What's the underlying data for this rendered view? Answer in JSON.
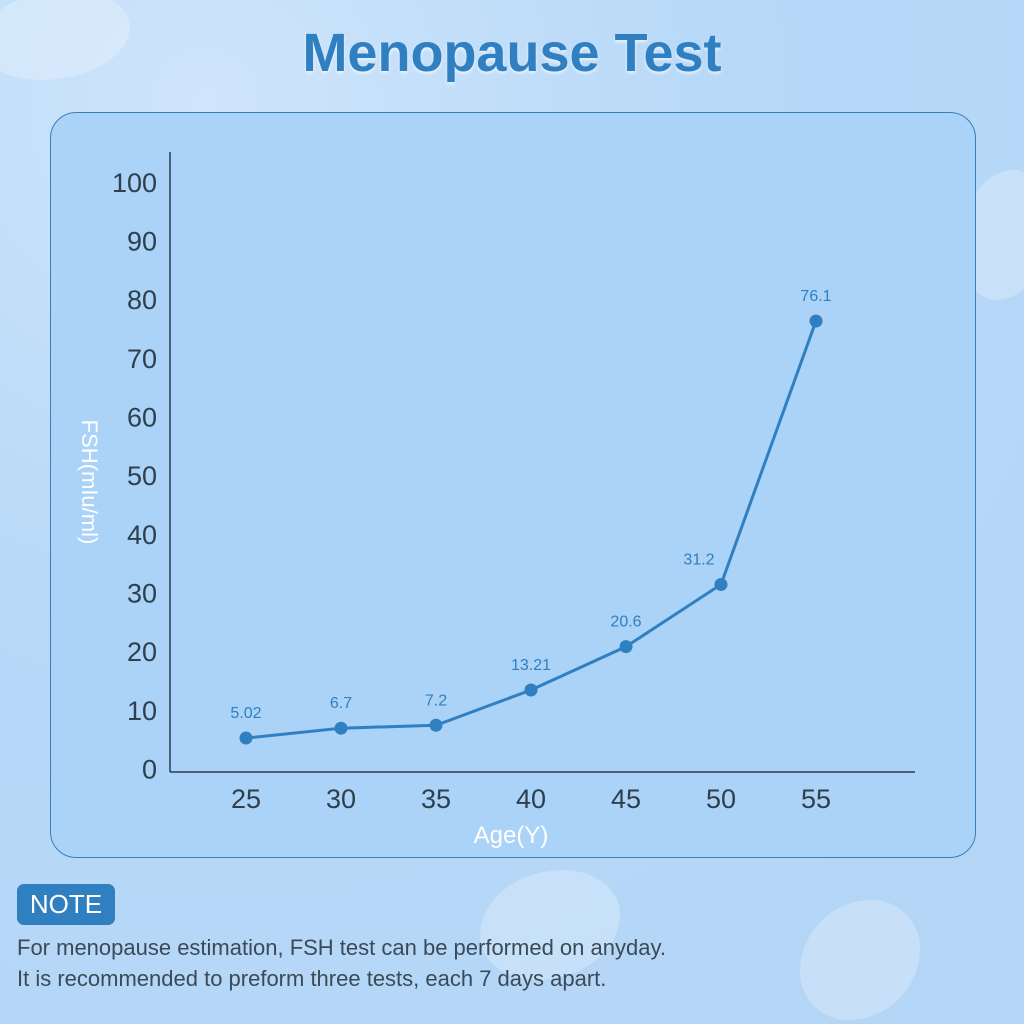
{
  "title": "Menopause Test",
  "chart_data": {
    "type": "line",
    "title": "Menopause Test",
    "xlabel": "Age(Y)",
    "ylabel": "FSH(mIu/ml)",
    "categories": [
      25,
      30,
      35,
      40,
      45,
      50,
      55
    ],
    "values": [
      5.02,
      6.7,
      7.2,
      13.21,
      20.6,
      31.2,
      76.1
    ],
    "data_labels": [
      "5.02",
      "6.7",
      "7.2",
      "13.21",
      "20.6",
      "31.2",
      "76.1"
    ],
    "y_ticks": [
      0,
      10,
      20,
      30,
      40,
      50,
      60,
      70,
      80,
      90,
      100
    ],
    "ylim": [
      0,
      100
    ],
    "grid": false,
    "line_color": "#2f7fc1"
  },
  "note": {
    "badge": "NOTE",
    "lines": [
      "For menopause estimation, FSH test can be performed on anyday.",
      "It is recommended to preform three tests, each 7 days apart."
    ]
  }
}
